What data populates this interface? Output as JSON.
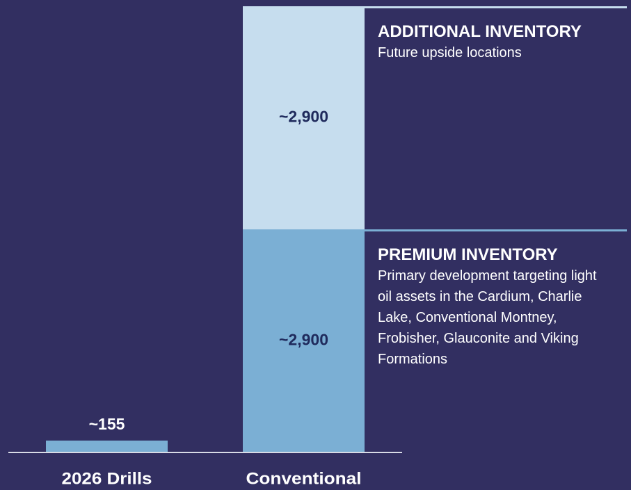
{
  "chart_data": {
    "type": "bar",
    "stacked": true,
    "categories": [
      "2026 Drills",
      "Conventional"
    ],
    "ylim": [
      0,
      5800
    ],
    "series": [
      {
        "name": "PREMIUM INVENTORY",
        "description": "Primary development targeting light oil assets in the Cardium, Charlie Lake, Conventional Montney, Frobisher, Glauconite and Viking Formations",
        "color": "#7bafd4",
        "values": [
          155,
          2900
        ],
        "value_labels": [
          "~155",
          "~2,900"
        ]
      },
      {
        "name": "ADDITIONAL INVENTORY",
        "description": "Future upside locations",
        "color": "#c6ddee",
        "values": [
          null,
          2900
        ],
        "value_labels": [
          null,
          "~2,900"
        ]
      }
    ]
  }
}
